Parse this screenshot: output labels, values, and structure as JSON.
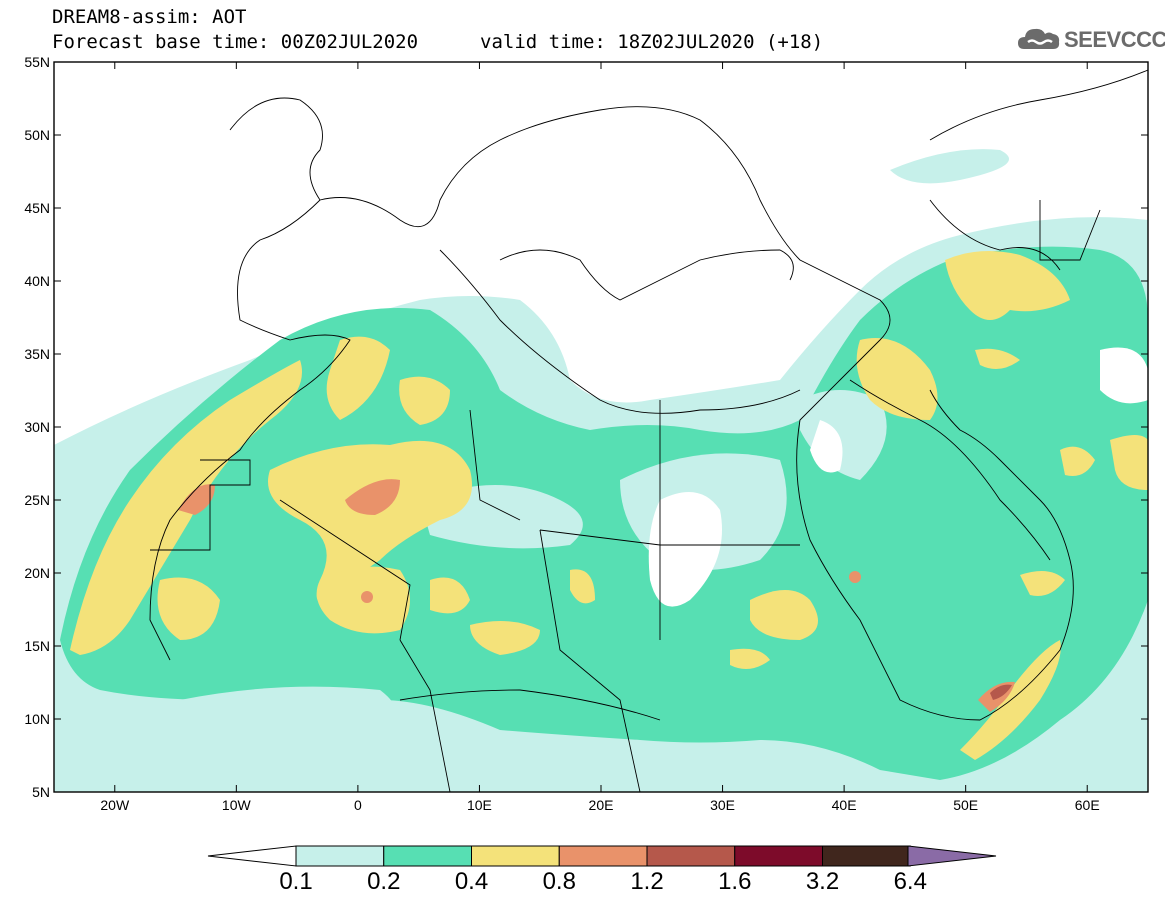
{
  "header": {
    "title_line1": "DREAM8-assim: AOT",
    "title_line2": "Forecast base time: 00Z02JUL2020",
    "valid_time": "valid time: 18Z02JUL2020 (+18)",
    "logo_text": "SEEVCCC",
    "logo_icon": "cloud-icon"
  },
  "map": {
    "lat_labels": [
      "55N",
      "50N",
      "45N",
      "40N",
      "35N",
      "30N",
      "25N",
      "20N",
      "15N",
      "10N",
      "5N"
    ],
    "lon_labels": [
      "20W",
      "10W",
      "0",
      "10E",
      "20E",
      "30E",
      "40E",
      "50E",
      "60E"
    ],
    "lat_range": [
      5,
      55
    ],
    "lon_range": [
      -25,
      65
    ]
  },
  "colorbar": {
    "levels": [
      "0.1",
      "0.2",
      "0.4",
      "0.8",
      "1.2",
      "1.6",
      "3.2",
      "6.4"
    ],
    "colors": [
      "#ffffff",
      "#c6f0ea",
      "#57dfb3",
      "#f4e27a",
      "#e9926a",
      "#b5584b",
      "#7d0b2a",
      "#40261d",
      "#8a6ba6"
    ]
  }
}
